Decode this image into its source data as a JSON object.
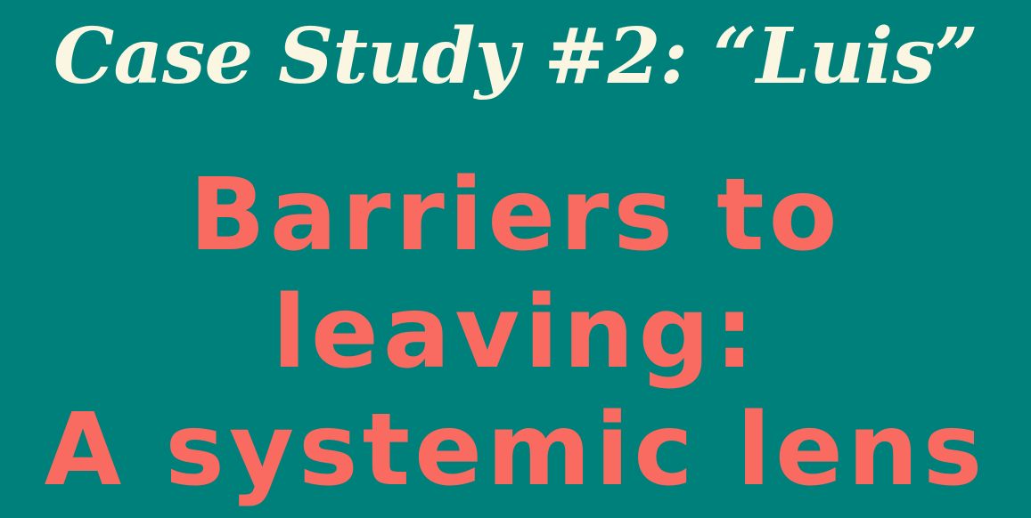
{
  "slide": {
    "title": "Case Study #2: “Luis”",
    "subtitle_lines": [
      "Barriers to",
      "leaving:",
      "A systemic lens"
    ]
  },
  "colors": {
    "background": "#00807b",
    "title": "#fbf6e1",
    "subtitle": "#f96a61"
  }
}
